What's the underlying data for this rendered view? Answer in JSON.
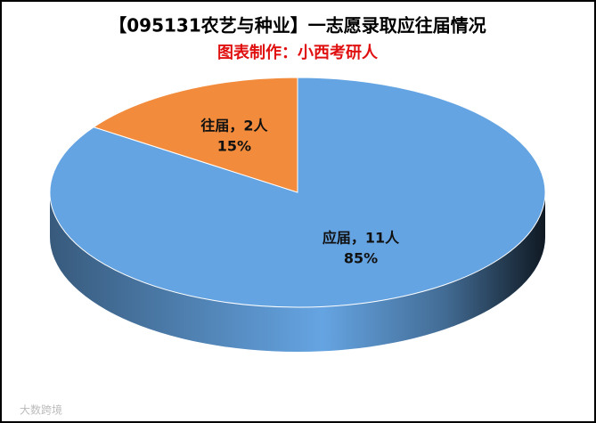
{
  "chart_data": {
    "type": "pie",
    "title": "【095131农艺与种业】一志愿录取应往届情况",
    "subtitle": "图表制作：小西考研人",
    "categories": [
      "应届",
      "往届"
    ],
    "values": [
      11,
      2
    ],
    "value_labels": [
      "应届，11人",
      "往届，2人"
    ],
    "percents": [
      85,
      15
    ],
    "percent_labels": [
      "85%",
      "15%"
    ],
    "colors": [
      "#65a4e2",
      "#f28b3c"
    ],
    "watermark": "大数跨境"
  }
}
